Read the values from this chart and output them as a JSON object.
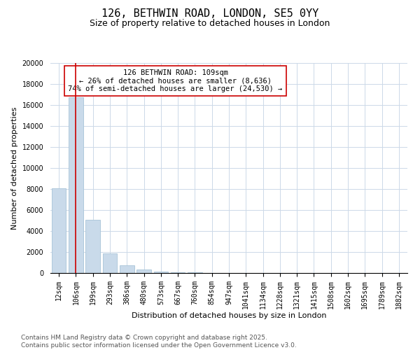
{
  "title_line1": "126, BETHWIN ROAD, LONDON, SE5 0YY",
  "title_line2": "Size of property relative to detached houses in London",
  "xlabel": "Distribution of detached houses by size in London",
  "ylabel": "Number of detached properties",
  "annotation_title": "126 BETHWIN ROAD: 109sqm",
  "annotation_line2": "← 26% of detached houses are smaller (8,636)",
  "annotation_line3": "74% of semi-detached houses are larger (24,530) →",
  "footnote_line1": "Contains HM Land Registry data © Crown copyright and database right 2025.",
  "footnote_line2": "Contains public sector information licensed under the Open Government Licence v3.0.",
  "bar_color": "#c9daea",
  "bar_edge_color": "#a8c4d8",
  "vline_color": "#cc0000",
  "annotation_box_edge": "#cc0000",
  "background_color": "#ffffff",
  "grid_color": "#ccd9e8",
  "categories": [
    "12sqm",
    "106sqm",
    "199sqm",
    "293sqm",
    "386sqm",
    "480sqm",
    "573sqm",
    "667sqm",
    "760sqm",
    "854sqm",
    "947sqm",
    "1041sqm",
    "1134sqm",
    "1228sqm",
    "1321sqm",
    "1415sqm",
    "1508sqm",
    "1602sqm",
    "1695sqm",
    "1789sqm",
    "1882sqm"
  ],
  "values": [
    8100,
    16700,
    5100,
    1850,
    730,
    320,
    155,
    80,
    50,
    15,
    0,
    0,
    0,
    0,
    0,
    0,
    0,
    0,
    0,
    0,
    0
  ],
  "ylim": [
    0,
    20000
  ],
  "yticks": [
    0,
    2000,
    4000,
    6000,
    8000,
    10000,
    12000,
    14000,
    16000,
    18000,
    20000
  ],
  "vline_x_index": 1,
  "title_fontsize": 11,
  "subtitle_fontsize": 9,
  "xlabel_fontsize": 8,
  "ylabel_fontsize": 8,
  "tick_fontsize": 7,
  "footnote_fontsize": 6.5,
  "annotation_fontsize": 7.5
}
